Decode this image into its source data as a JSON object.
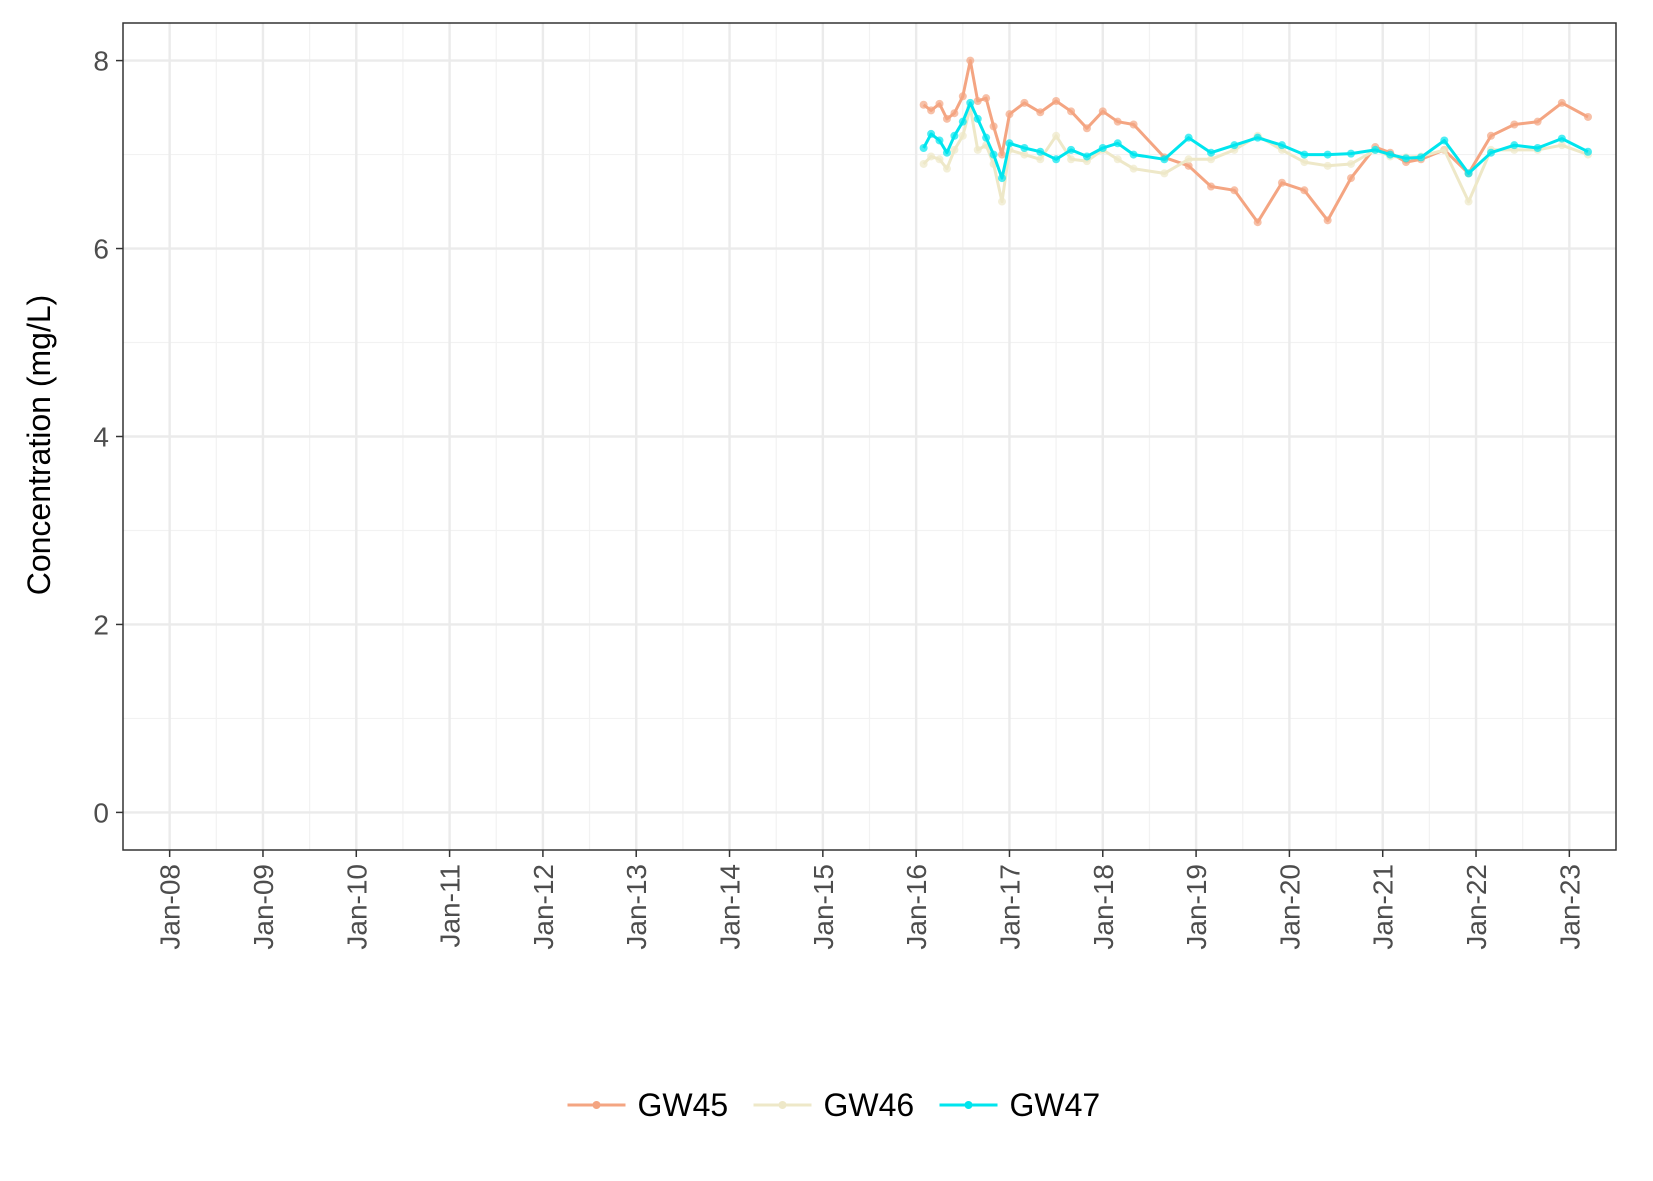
{
  "chart_data": {
    "type": "line",
    "title": "",
    "xlabel": "",
    "ylabel": "Concentration (mg/L)",
    "ylim": [
      -0.4,
      8.4
    ],
    "xlim": [
      2007.5,
      2023.5
    ],
    "yticks": [
      0,
      2,
      4,
      6,
      8
    ],
    "ytick_labels": [
      "0",
      "2",
      "4",
      "6",
      "8"
    ],
    "xticks": [
      2008,
      2009,
      2010,
      2011,
      2012,
      2013,
      2014,
      2015,
      2016,
      2017,
      2018,
      2019,
      2020,
      2021,
      2022,
      2023
    ],
    "xtick_labels": [
      "Jan-08",
      "Jan-09",
      "Jan-10",
      "Jan-11",
      "Jan-12",
      "Jan-13",
      "Jan-14",
      "Jan-15",
      "Jan-16",
      "Jan-17",
      "Jan-18",
      "Jan-19",
      "Jan-20",
      "Jan-21",
      "Jan-22",
      "Jan-23"
    ],
    "grid": true,
    "legend_position": "bottom",
    "series": [
      {
        "name": "GW45",
        "color": "#F4A582",
        "x": [
          2016.08,
          2016.16,
          2016.25,
          2016.33,
          2016.41,
          2016.5,
          2016.58,
          2016.66,
          2016.75,
          2016.83,
          2016.92,
          2017.0,
          2017.16,
          2017.33,
          2017.5,
          2017.66,
          2017.83,
          2018.0,
          2018.16,
          2018.33,
          2018.66,
          2018.92,
          2019.16,
          2019.41,
          2019.66,
          2019.92,
          2020.16,
          2020.41,
          2020.66,
          2020.92,
          2021.08,
          2021.25,
          2021.41,
          2021.66,
          2021.92,
          2022.16,
          2022.41,
          2022.66,
          2022.92,
          2023.2
        ],
        "y": [
          7.53,
          7.47,
          7.54,
          7.38,
          7.44,
          7.62,
          8.0,
          7.57,
          7.6,
          7.3,
          7.0,
          7.43,
          7.55,
          7.45,
          7.57,
          7.46,
          7.28,
          7.46,
          7.35,
          7.32,
          6.97,
          6.88,
          6.66,
          6.62,
          6.28,
          6.7,
          6.62,
          6.3,
          6.75,
          7.08,
          7.02,
          6.92,
          6.95,
          7.05,
          6.8,
          7.2,
          7.32,
          7.35,
          7.55,
          7.4
        ]
      },
      {
        "name": "GW46",
        "color": "#EEE8C8",
        "x": [
          2016.08,
          2016.16,
          2016.25,
          2016.33,
          2016.41,
          2016.5,
          2016.58,
          2016.66,
          2016.75,
          2016.83,
          2016.92,
          2017.0,
          2017.16,
          2017.33,
          2017.5,
          2017.66,
          2017.83,
          2018.0,
          2018.16,
          2018.33,
          2018.66,
          2018.92,
          2019.16,
          2019.41,
          2019.66,
          2019.92,
          2020.16,
          2020.41,
          2020.66,
          2020.92,
          2021.08,
          2021.25,
          2021.41,
          2021.66,
          2021.92,
          2022.16,
          2022.41,
          2022.66,
          2022.92,
          2023.2
        ],
        "y": [
          6.9,
          6.98,
          6.95,
          6.85,
          7.05,
          7.2,
          7.5,
          7.05,
          7.1,
          6.9,
          6.5,
          7.05,
          7.0,
          6.95,
          7.2,
          6.95,
          6.93,
          7.05,
          6.95,
          6.85,
          6.8,
          6.95,
          6.95,
          7.05,
          7.2,
          7.05,
          6.92,
          6.88,
          6.9,
          7.05,
          6.98,
          6.97,
          6.98,
          7.05,
          6.5,
          7.05,
          7.05,
          7.05,
          7.1,
          7.0
        ]
      },
      {
        "name": "GW47",
        "color": "#00E5EE",
        "x": [
          2016.08,
          2016.16,
          2016.25,
          2016.33,
          2016.41,
          2016.5,
          2016.58,
          2016.66,
          2016.75,
          2016.83,
          2016.92,
          2017.0,
          2017.16,
          2017.33,
          2017.5,
          2017.66,
          2017.83,
          2018.0,
          2018.16,
          2018.33,
          2018.66,
          2018.92,
          2019.16,
          2019.41,
          2019.66,
          2019.92,
          2020.16,
          2020.41,
          2020.66,
          2020.92,
          2021.08,
          2021.25,
          2021.41,
          2021.66,
          2021.92,
          2022.16,
          2022.41,
          2022.66,
          2022.92,
          2023.2
        ],
        "y": [
          7.07,
          7.22,
          7.15,
          7.02,
          7.2,
          7.35,
          7.55,
          7.38,
          7.18,
          7.0,
          6.75,
          7.12,
          7.07,
          7.03,
          6.95,
          7.05,
          6.98,
          7.07,
          7.12,
          7.0,
          6.95,
          7.18,
          7.02,
          7.1,
          7.18,
          7.1,
          7.0,
          7.0,
          7.01,
          7.05,
          7.0,
          6.96,
          6.97,
          7.15,
          6.8,
          7.02,
          7.1,
          7.07,
          7.17,
          7.03
        ]
      }
    ]
  }
}
